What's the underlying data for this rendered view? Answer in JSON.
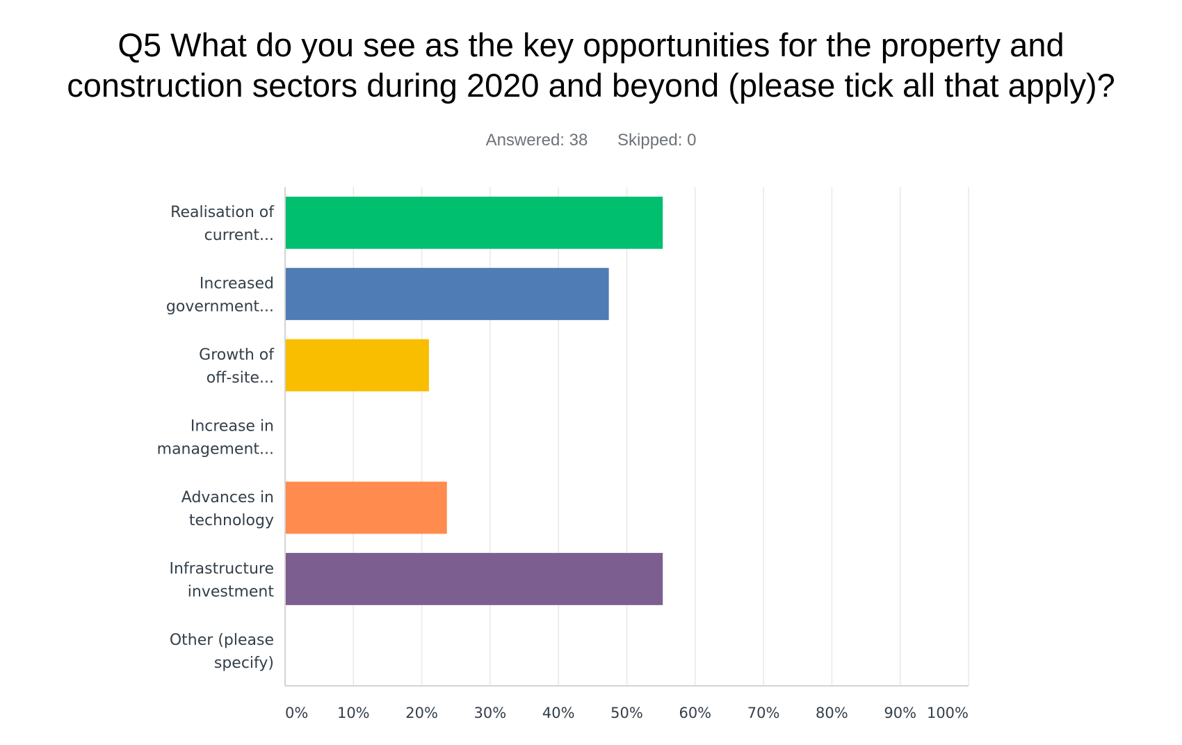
{
  "header": {
    "title_line1": "Q5 What do you see as the key opportunities for the property and",
    "title_line2": "construction sectors during 2020 and beyond (please tick all that apply)?",
    "answered": "Answered: 38",
    "skipped": "Skipped: 0"
  },
  "chart_data": {
    "type": "bar",
    "orientation": "horizontal",
    "categories": [
      [
        "Realisation of",
        "current..."
      ],
      [
        "Increased",
        "government..."
      ],
      [
        "Growth of",
        "off-site..."
      ],
      [
        "Increase in",
        "management..."
      ],
      [
        "Advances in",
        "technology"
      ],
      [
        "Infrastructure",
        "investment"
      ],
      [
        "Other (please",
        "specify)"
      ]
    ],
    "values": [
      55.26,
      47.37,
      21.05,
      0,
      23.68,
      55.26,
      0
    ],
    "colors": [
      "#00bf6f",
      "#507cb6",
      "#f9be00",
      "#6bc8cd",
      "#ff8b4f",
      "#7d5e90",
      "#d25f90"
    ],
    "xlim": [
      0,
      100
    ],
    "ticks": [
      0,
      10,
      20,
      30,
      40,
      50,
      60,
      70,
      80,
      90,
      100
    ],
    "tick_labels": [
      "0%",
      "10%",
      "20%",
      "30%",
      "40%",
      "50%",
      "60%",
      "70%",
      "80%",
      "90%",
      "100%"
    ],
    "grid": true,
    "gridline_color": "#e8e8e8",
    "axis_color": "#d3d3d3"
  }
}
